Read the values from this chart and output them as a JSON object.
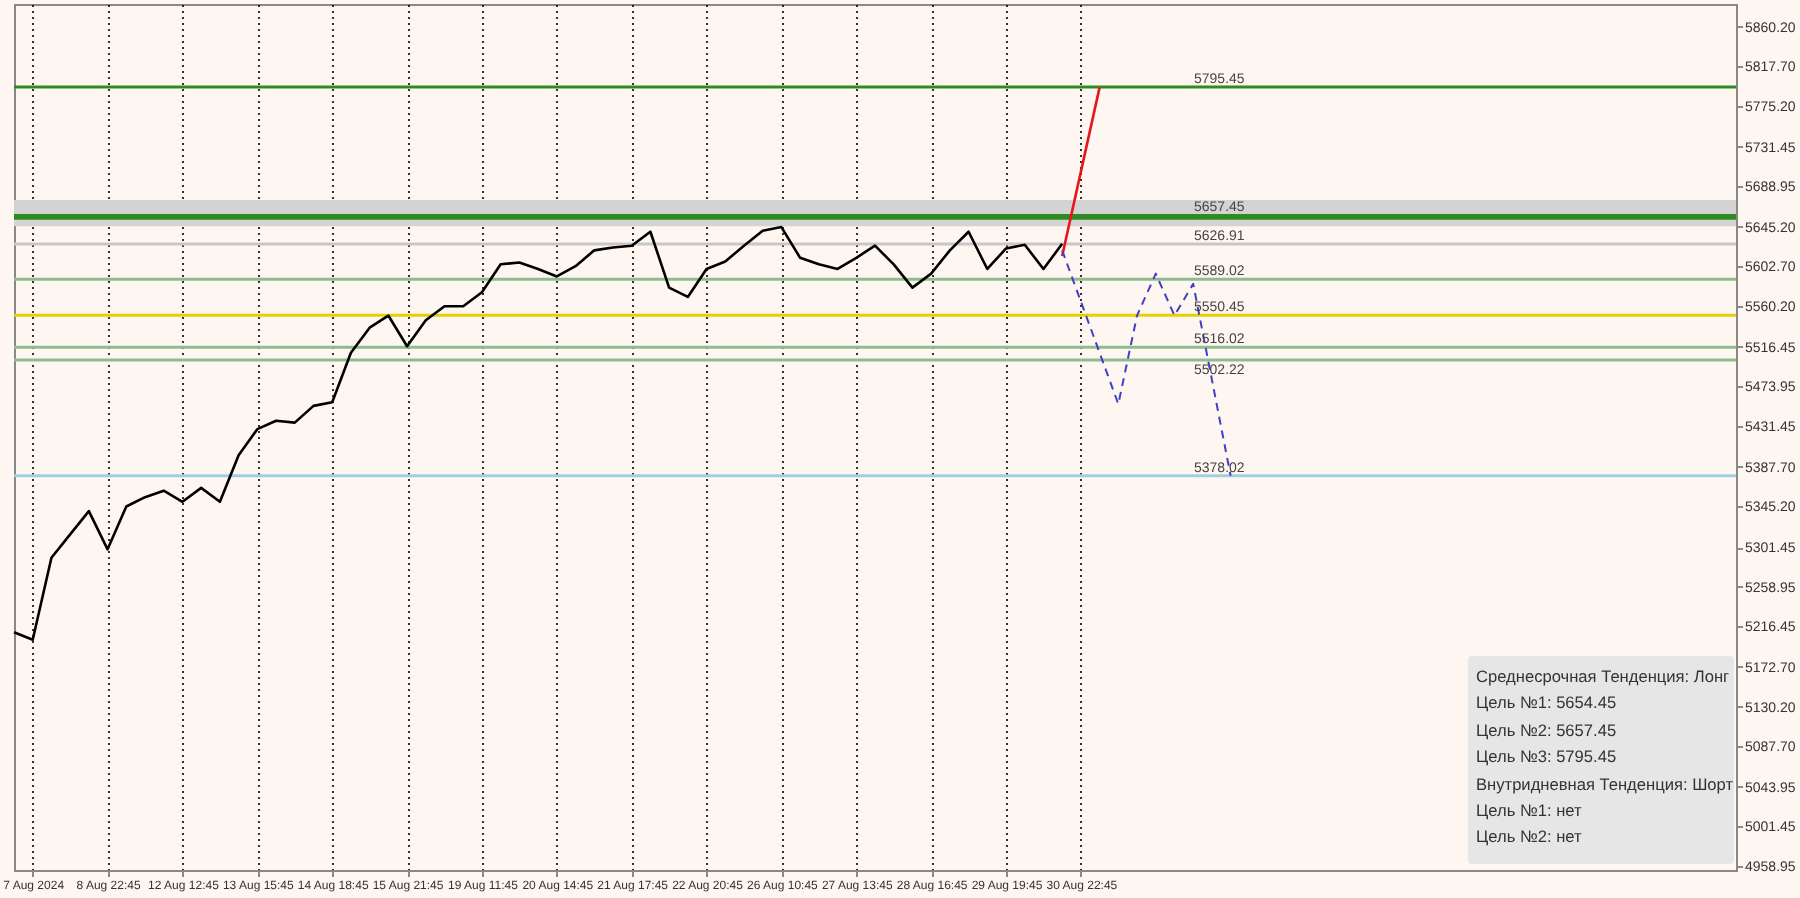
{
  "chart_data": {
    "type": "line",
    "categories": [
      null,
      "7 Aug 2024",
      null,
      null,
      null,
      "8 Aug 22:45",
      null,
      null,
      null,
      "12 Aug 12:45",
      null,
      null,
      null,
      "13 Aug 15:45",
      null,
      null,
      null,
      "14 Aug 18:45",
      null,
      null,
      null,
      "15 Aug 21:45",
      null,
      null,
      null,
      "19 Aug 11:45",
      null,
      null,
      null,
      "20 Aug 14:45",
      null,
      null,
      null,
      "21 Aug 17:45",
      null,
      null,
      null,
      "22 Aug 20:45",
      null,
      null,
      null,
      "26 Aug 10:45",
      null,
      null,
      null,
      "27 Aug 13:45",
      null,
      null,
      null,
      "28 Aug 16:45",
      null,
      null,
      null,
      "29 Aug 19:45",
      null,
      null,
      null,
      "30 Aug 22:45",
      null,
      null,
      null,
      null,
      null,
      null,
      null,
      null,
      null,
      null,
      null,
      null,
      null,
      null,
      null,
      null,
      null,
      null,
      null,
      null,
      null,
      null,
      null,
      null,
      null,
      null,
      null,
      null,
      null,
      null,
      null,
      null,
      null,
      null,
      null
    ],
    "ylim": [
      4954.7,
      5884.5
    ],
    "yticks": [
      {
        "value": 5860.2,
        "label": "5860.20"
      },
      {
        "value": 5817.7,
        "label": "5817.70"
      },
      {
        "value": 5775.2,
        "label": "5775.20"
      },
      {
        "value": 5731.45,
        "label": "5731.45"
      },
      {
        "value": 5688.95,
        "label": "5688.95"
      },
      {
        "value": 5645.2,
        "label": "5645.20"
      },
      {
        "value": 5602.7,
        "label": "5602.70"
      },
      {
        "value": 5560.2,
        "label": "5560.20"
      },
      {
        "value": 5516.45,
        "label": "5516.45"
      },
      {
        "value": 5473.95,
        "label": "5473.95"
      },
      {
        "value": 5431.45,
        "label": "5431.45"
      },
      {
        "value": 5387.7,
        "label": "5387.70"
      },
      {
        "value": 5345.2,
        "label": "5345.20"
      },
      {
        "value": 5301.45,
        "label": "5301.45"
      },
      {
        "value": 5258.95,
        "label": "5258.95"
      },
      {
        "value": 5216.45,
        "label": "5216.45"
      },
      {
        "value": 5172.7,
        "label": "5172.70"
      },
      {
        "value": 5130.2,
        "label": "5130.20"
      },
      {
        "value": 5087.7,
        "label": "5087.70"
      },
      {
        "value": 5043.95,
        "label": "5043.95"
      },
      {
        "value": 5001.45,
        "label": "5001.45"
      },
      {
        "value": 4958.95,
        "label": "4958.95"
      }
    ],
    "grid": "x",
    "series": [
      {
        "color": "#000000",
        "values": [
          5210,
          5202,
          5290,
          5315,
          5340,
          5299,
          5345,
          5355,
          5362,
          5350,
          5365,
          5350,
          5400,
          5428,
          5437,
          5435,
          5453,
          5457,
          5510,
          5537,
          5550,
          5517,
          5545,
          5560,
          5560,
          5575,
          5605,
          5607,
          5600,
          5592,
          5603,
          5620,
          5623,
          5625,
          5640,
          5580,
          5570,
          5600,
          5608,
          5625,
          5641,
          5645,
          5612,
          5605,
          5600,
          5612,
          5625,
          5605,
          5580,
          5595,
          5620,
          5640,
          5600,
          5622,
          5626,
          5600,
          5627,
          null,
          null,
          null,
          null,
          null,
          null,
          null,
          null,
          null,
          null,
          null,
          null,
          null,
          null,
          null,
          null,
          null,
          null,
          null,
          null,
          null,
          null,
          null,
          null,
          null,
          null,
          null,
          null,
          null,
          null,
          null,
          null,
          null,
          null,
          null,
          null
        ]
      },
      {
        "color": "#e8141c",
        "values": [
          null,
          null,
          null,
          null,
          null,
          null,
          null,
          null,
          null,
          null,
          null,
          null,
          null,
          null,
          null,
          null,
          null,
          null,
          null,
          null,
          null,
          null,
          null,
          null,
          null,
          null,
          null,
          null,
          null,
          null,
          null,
          null,
          null,
          null,
          null,
          null,
          null,
          null,
          null,
          null,
          null,
          null,
          null,
          null,
          null,
          null,
          null,
          null,
          null,
          null,
          null,
          null,
          null,
          null,
          null,
          null,
          5614,
          null,
          5795,
          null,
          null,
          null,
          null,
          null,
          null,
          null,
          null,
          null,
          null,
          null,
          null,
          null,
          null,
          null,
          null,
          null,
          null,
          null,
          null,
          null,
          null,
          null,
          null,
          null,
          null,
          null,
          null,
          null,
          null,
          null,
          null,
          null,
          null
        ]
      },
      {
        "color": "#4040c0",
        "line_style": "dashed",
        "values": [
          null,
          null,
          null,
          null,
          null,
          null,
          null,
          null,
          null,
          null,
          null,
          null,
          null,
          null,
          null,
          null,
          null,
          null,
          null,
          null,
          null,
          null,
          null,
          null,
          null,
          null,
          null,
          null,
          null,
          null,
          null,
          null,
          null,
          null,
          null,
          null,
          null,
          null,
          null,
          null,
          null,
          null,
          null,
          null,
          null,
          null,
          null,
          null,
          null,
          null,
          null,
          null,
          null,
          null,
          null,
          null,
          5620,
          null,
          null,
          5455,
          5550,
          5595,
          5550,
          5584,
          null,
          5378,
          null,
          null,
          null,
          null,
          null,
          null,
          null,
          null,
          null,
          null,
          null,
          null,
          null,
          null,
          null,
          null,
          null,
          null,
          null,
          null,
          null,
          null,
          null,
          null,
          null,
          null,
          null
        ]
      }
    ],
    "bands": [
      {
        "axis": "y",
        "from": 5646,
        "to": 5674,
        "color": "#d3d3d3"
      }
    ],
    "ref_lines": [
      {
        "axis": "y",
        "value": 5795.45,
        "label": "5795.45",
        "color": "#2e8b22"
      },
      {
        "axis": "y",
        "value": 5657.45,
        "label": "5657.45",
        "color": "#2e8b22"
      },
      {
        "axis": "y",
        "value": 5654.45,
        "color": "#2e8b22"
      },
      {
        "axis": "y",
        "value": 5626.91,
        "label": "5626.91",
        "color": "#c8c8c8"
      },
      {
        "axis": "y",
        "value": 5589.02,
        "label": "5589.02",
        "color": "#8fbc8f"
      },
      {
        "axis": "y",
        "value": 5550.45,
        "label": "5550.45",
        "color": "#e8d000"
      },
      {
        "axis": "y",
        "value": 5516.02,
        "label": "5516.02",
        "color": "#8fbc8f"
      },
      {
        "axis": "y",
        "value": 5502.22,
        "label": "5502.22",
        "color": "#8fbc8f"
      },
      {
        "axis": "y",
        "value": 5378.02,
        "label": "5378.02",
        "color": "#9fd0e0"
      }
    ],
    "annotations": [
      "Среднесрочная Тенденция: Лонг",
      "Цель №1: 5654.45",
      "Цель №2: 5657.45",
      "Цель №3: 5795.45",
      "Внутридневная Тенденция: Шорт",
      "Цель №1: нет",
      "Цель №2: нет"
    ]
  }
}
